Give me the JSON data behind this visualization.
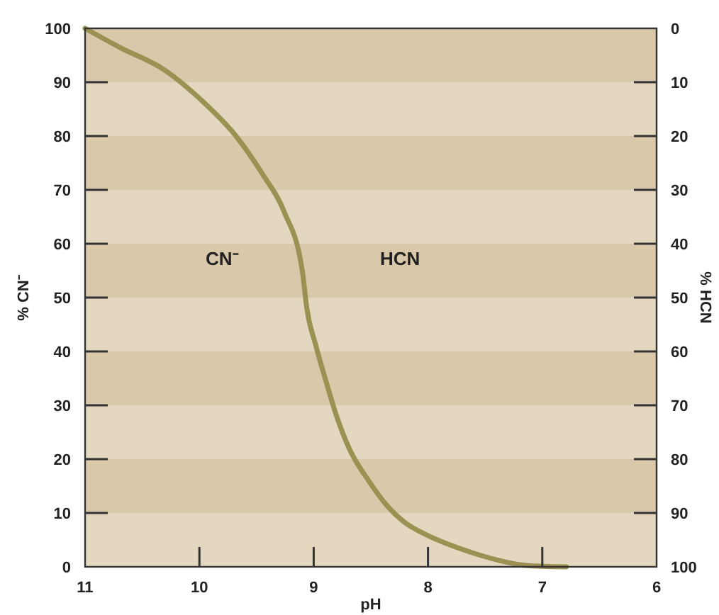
{
  "chart_data": {
    "type": "line",
    "xlabel": "pH",
    "ylabel": "% CN⁻",
    "y2label": "% HCN",
    "x": [
      11,
      10.7,
      10.3,
      10,
      9.68,
      9.45,
      9.26,
      9.1,
      9.06,
      8.98,
      8.9,
      8.8,
      8.69,
      8.52,
      8.36,
      8.2,
      8.02,
      7.8,
      7.61,
      7.4,
      7.2,
      7,
      6.79
    ],
    "series": [
      {
        "color": "#9a9152",
        "values": [
          100,
          96.5,
          92.2,
          87,
          80,
          73,
          66,
          55,
          48,
          41,
          35,
          28,
          22,
          16,
          11.4,
          8.2,
          6,
          4,
          2.6,
          1.3,
          0.4,
          0.1,
          0
        ]
      }
    ],
    "xlim": [
      11,
      6
    ],
    "xticks": [
      11,
      10,
      9,
      8,
      7,
      6
    ],
    "ylim": [
      0,
      100
    ],
    "yticks": [
      0,
      10,
      20,
      30,
      40,
      50,
      60,
      70,
      80,
      90,
      100
    ],
    "y2lim": [
      100,
      0
    ],
    "y2ticks": [
      0,
      10,
      20,
      30,
      40,
      50,
      60,
      70,
      80,
      90,
      100
    ],
    "bands": [
      {
        "axis": "y",
        "from": 10,
        "to": 20,
        "color": "#d9c8a9"
      },
      {
        "axis": "y",
        "from": 30,
        "to": 40,
        "color": "#d9c8a9"
      },
      {
        "axis": "y",
        "from": 50,
        "to": 60,
        "color": "#d9c8a9"
      },
      {
        "axis": "y",
        "from": 70,
        "to": 80,
        "color": "#d9c8a9"
      },
      {
        "axis": "y",
        "from": 90,
        "to": 100,
        "color": "#d9c8a9"
      }
    ],
    "annotations": [
      "CN⁻",
      "HCN"
    ]
  }
}
